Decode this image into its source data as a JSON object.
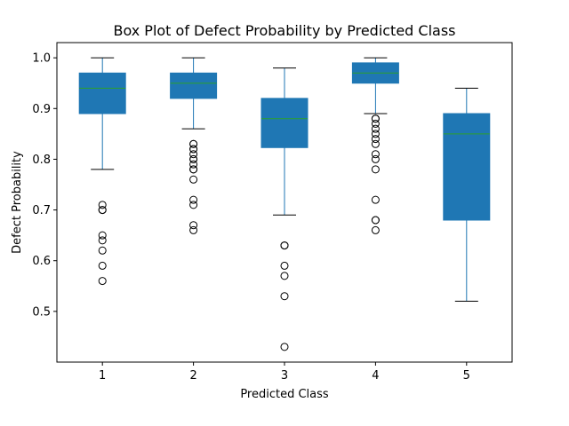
{
  "chart_data": {
    "type": "box",
    "title": "Box Plot of Defect Probability by Predicted Class",
    "xlabel": "Predicted Class",
    "ylabel": "Defect Probability",
    "ylim": [
      0.4,
      1.03
    ],
    "yticks": [
      0.5,
      0.6,
      0.7,
      0.8,
      0.9,
      1.0
    ],
    "ytick_labels": [
      "0.5",
      "0.6",
      "0.7",
      "0.8",
      "0.9",
      "1.0"
    ],
    "grid": false,
    "box_color": "#1f77b4",
    "median_color": "#2ca02c",
    "categories": [
      "1",
      "2",
      "3",
      "4",
      "5"
    ],
    "boxes": [
      {
        "category": "1",
        "whisker_low": 0.78,
        "q1": 0.89,
        "median": 0.94,
        "q3": 0.97,
        "whisker_high": 1.0,
        "outliers": [
          0.71,
          0.7,
          0.7,
          0.65,
          0.64,
          0.62,
          0.59,
          0.56
        ]
      },
      {
        "category": "2",
        "whisker_low": 0.86,
        "q1": 0.92,
        "median": 0.95,
        "q3": 0.97,
        "whisker_high": 1.0,
        "outliers": [
          0.83,
          0.83,
          0.82,
          0.82,
          0.81,
          0.8,
          0.8,
          0.79,
          0.78,
          0.78,
          0.76,
          0.72,
          0.71,
          0.67,
          0.66
        ]
      },
      {
        "category": "3",
        "whisker_low": 0.69,
        "q1": 0.823,
        "median": 0.88,
        "q3": 0.92,
        "whisker_high": 0.98,
        "outliers": [
          0.63,
          0.63,
          0.59,
          0.57,
          0.53,
          0.43
        ]
      },
      {
        "category": "4",
        "whisker_low": 0.89,
        "q1": 0.95,
        "median": 0.97,
        "q3": 0.99,
        "whisker_high": 1.0,
        "outliers": [
          0.88,
          0.88,
          0.87,
          0.86,
          0.85,
          0.84,
          0.83,
          0.81,
          0.8,
          0.78,
          0.72,
          0.68,
          0.68,
          0.66
        ]
      },
      {
        "category": "5",
        "whisker_low": 0.52,
        "q1": 0.68,
        "median": 0.85,
        "q3": 0.89,
        "whisker_high": 0.94,
        "outliers": []
      }
    ]
  }
}
